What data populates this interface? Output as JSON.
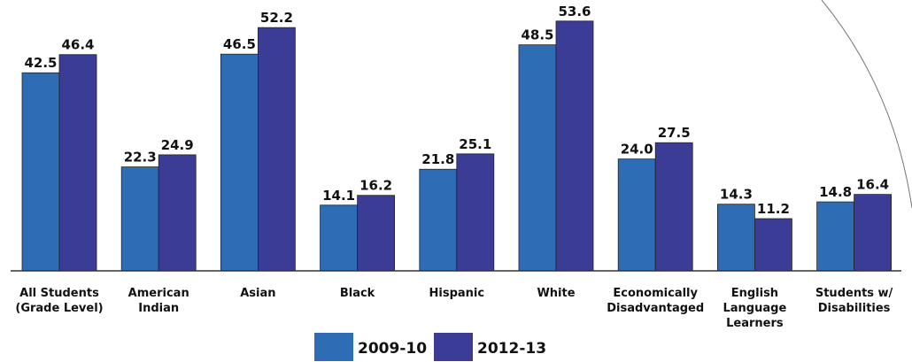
{
  "chart_data": {
    "type": "bar",
    "categories": [
      [
        "All Students",
        "(Grade Level)"
      ],
      [
        "American",
        "Indian"
      ],
      [
        "Asian"
      ],
      [
        "Black"
      ],
      [
        "Hispanic"
      ],
      [
        "White"
      ],
      [
        "Economically",
        "Disadvantaged"
      ],
      [
        "English",
        "Language",
        "Learners"
      ],
      [
        "Students w/",
        "Disabilities"
      ]
    ],
    "series": [
      {
        "name": "2009-10",
        "color": "#2e6db5",
        "values": [
          42.5,
          22.3,
          46.5,
          14.1,
          21.8,
          48.5,
          24.0,
          14.3,
          14.8
        ],
        "labels": [
          "42.5",
          "22.3",
          "46.5",
          "14.1",
          "21.8",
          "48.5",
          "24.0",
          "14.3",
          "14.8"
        ]
      },
      {
        "name": "2012-13",
        "color": "#3a3c96",
        "values": [
          46.4,
          24.9,
          52.2,
          16.2,
          25.1,
          53.6,
          27.5,
          11.2,
          16.4
        ],
        "labels": [
          "46.4",
          "24.9",
          "52.2",
          "16.2",
          "25.1",
          "53.6",
          "27.5",
          "11.2",
          "16.4"
        ]
      }
    ],
    "title": "",
    "xlabel": "",
    "ylabel": "",
    "ylim": [
      0,
      60
    ],
    "grid": false,
    "legend": "bottom-center"
  }
}
